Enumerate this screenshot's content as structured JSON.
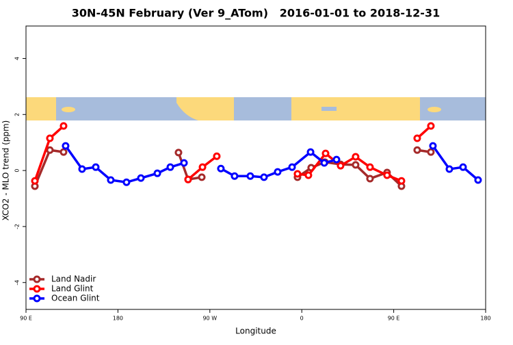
{
  "chart_data": {
    "type": "line",
    "title": "30N-45N February (Ver 9_ATom)   2016-01-01 to 2018-12-31",
    "xlabel": "Longitude",
    "ylabel": "XCO2 - MLO trend (ppm)",
    "xlim": [
      90,
      540
    ],
    "ylim": [
      -4.96,
      5.16
    ],
    "xticks": [
      {
        "value": 90,
        "label": "90 E"
      },
      180,
      {
        "value": 270,
        "label": "90 W"
      },
      {
        "value": 360,
        "label": "0"
      },
      {
        "value": 450,
        "label": "90 E"
      },
      {
        "value": 540,
        "label": "180"
      }
    ],
    "yticks": [
      -4,
      -2,
      0,
      2,
      4
    ],
    "legend": "bottom-left",
    "series": [
      {
        "name": "Land Nadir",
        "color": "#a52a2a",
        "x": [
          98.7,
          113.4,
          126.8,
          null,
          239.3,
          248.7,
          262.1,
          null,
          355.8,
          369.2,
          382.6,
          398,
          412.7,
          426.8,
          443.5,
          457.6,
          null,
          473,
          486.4
        ],
        "values": [
          -0.56,
          0.73,
          0.66,
          null,
          0.64,
          -0.32,
          -0.24,
          null,
          -0.24,
          0.1,
          0.3,
          0.22,
          0.2,
          -0.29,
          -0.07,
          -0.56,
          null,
          0.73,
          0.66
        ]
      },
      {
        "name": "Land Glint",
        "color": "#ff0000",
        "x": [
          98.7,
          113.4,
          126.8,
          null,
          248.7,
          262.8,
          276.8,
          null,
          355.8,
          366.5,
          383.3,
          398,
          412.7,
          426.8,
          443.5,
          457.6,
          null,
          473,
          486.4
        ],
        "values": [
          -0.37,
          1.15,
          1.59,
          null,
          -0.32,
          0.12,
          0.51,
          null,
          -0.12,
          -0.17,
          0.61,
          0.17,
          0.49,
          0.12,
          -0.17,
          -0.37,
          null,
          1.15,
          1.59
        ]
      },
      {
        "name": "Ocean Glint",
        "color": "#0000ff",
        "x": [
          128.8,
          144.9,
          158.3,
          173,
          188.4,
          202.5,
          218.6,
          231.3,
          244.7,
          null,
          280.8,
          294.2,
          309.6,
          323,
          336.4,
          350.5,
          368.6,
          382,
          394,
          null,
          488.4,
          504.5,
          517.9,
          532.6
        ],
        "values": [
          0.88,
          0.05,
          0.12,
          -0.34,
          -0.42,
          -0.27,
          -0.1,
          0.12,
          0.27,
          null,
          0.07,
          -0.2,
          -0.2,
          -0.24,
          -0.05,
          0.12,
          0.66,
          0.27,
          0.39,
          null,
          0.88,
          0.05,
          0.12,
          -0.34
        ]
      }
    ]
  }
}
